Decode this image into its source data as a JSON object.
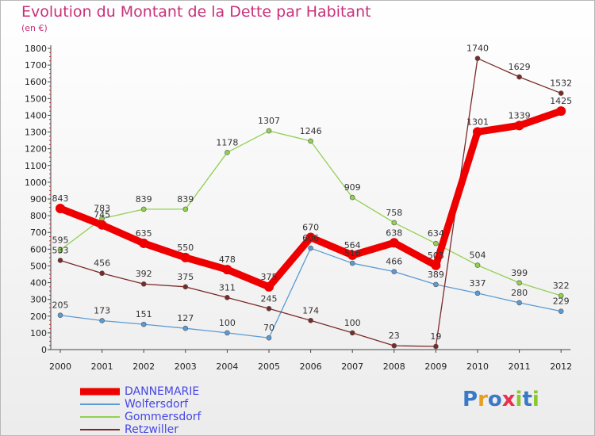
{
  "title": "Evolution du Montant de la Dette par Habitant",
  "subtitle": "(en €)",
  "logo": {
    "text": "Proxiti",
    "letters": [
      "P",
      "r",
      "o",
      "x",
      "i",
      "t",
      "i"
    ],
    "colors": [
      "#3a78c8",
      "#e6a020",
      "#3a78c8",
      "#e83050",
      "#8ac830",
      "#3a78c8",
      "#8ac830"
    ]
  },
  "chart_data": {
    "type": "line",
    "x": [
      "2000",
      "2001",
      "2002",
      "2003",
      "2004",
      "2005",
      "2006",
      "2007",
      "2008",
      "2009",
      "2010",
      "2011",
      "2012"
    ],
    "ylim": [
      0,
      1800
    ],
    "yticks": [
      0,
      100,
      200,
      300,
      400,
      500,
      600,
      700,
      800,
      900,
      1000,
      1100,
      1200,
      1300,
      1400,
      1500,
      1600,
      1700,
      1800
    ],
    "grid": false,
    "legend_position": "bottom-left",
    "series": [
      {
        "name": "DANNEMARIE",
        "color": "#ee0000",
        "values": [
          843,
          745,
          635,
          550,
          478,
          375,
          670,
          564,
          638,
          503,
          1301,
          1339,
          1425
        ]
      },
      {
        "name": "Wolfersdorf",
        "color": "#5b9bd5",
        "values": [
          205,
          173,
          151,
          127,
          100,
          70,
          606,
          516,
          466,
          389,
          337,
          280,
          229
        ]
      },
      {
        "name": "Gommersdorf",
        "color": "#92d050",
        "values": [
          595,
          783,
          839,
          839,
          1178,
          1307,
          1246,
          909,
          758,
          634,
          504,
          399,
          322
        ]
      },
      {
        "name": "Retzwiller",
        "color": "#7b2a2a",
        "values": [
          533,
          456,
          392,
          375,
          311,
          245,
          174,
          100,
          23,
          19,
          1740,
          1629,
          1532
        ]
      }
    ]
  }
}
